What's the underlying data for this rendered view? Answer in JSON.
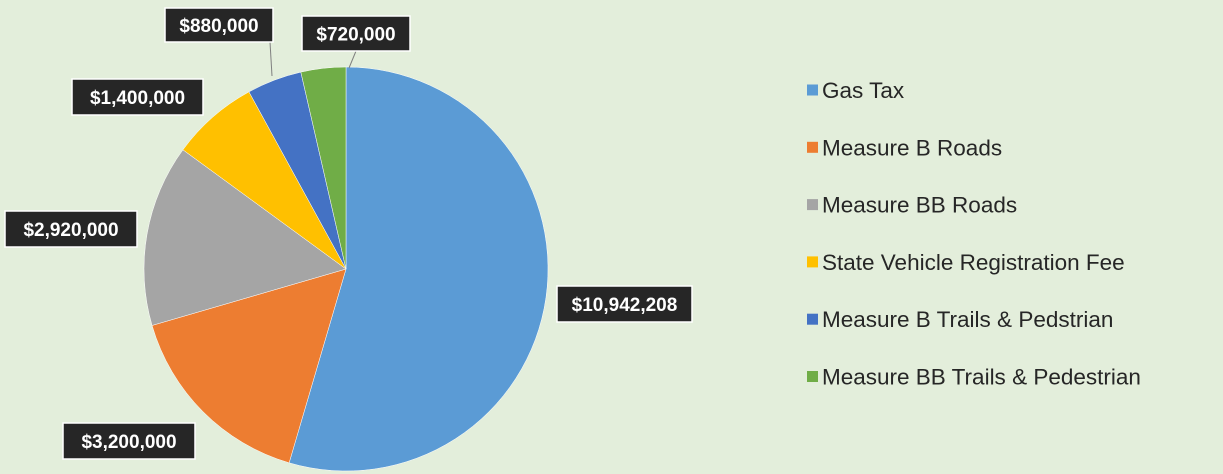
{
  "chart_data": {
    "type": "pie",
    "title": "",
    "start_angle_deg": 0,
    "direction": "clockwise",
    "legend_position": "right",
    "slices": [
      {
        "name": "Gas Tax",
        "value": 10942208,
        "label": "$10,942,208",
        "color": "#5b9bd5"
      },
      {
        "name": "Measure B Roads",
        "value": 3200000,
        "label": "$3,200,000",
        "color": "#ed7d31"
      },
      {
        "name": "Measure BB Roads",
        "value": 2920000,
        "label": "$2,920,000",
        "color": "#a5a5a5"
      },
      {
        "name": "State Vehicle Registration Fee",
        "value": 1400000,
        "label": "$1,400,000",
        "color": "#ffc000"
      },
      {
        "name": "Measure B Trails & Pedstrian",
        "value": 880000,
        "label": "$880,000",
        "color": "#4472c4"
      },
      {
        "name": "Measure BB Trails & Pedestrian",
        "value": 720000,
        "label": "$720,000",
        "color": "#70ad47"
      }
    ]
  }
}
